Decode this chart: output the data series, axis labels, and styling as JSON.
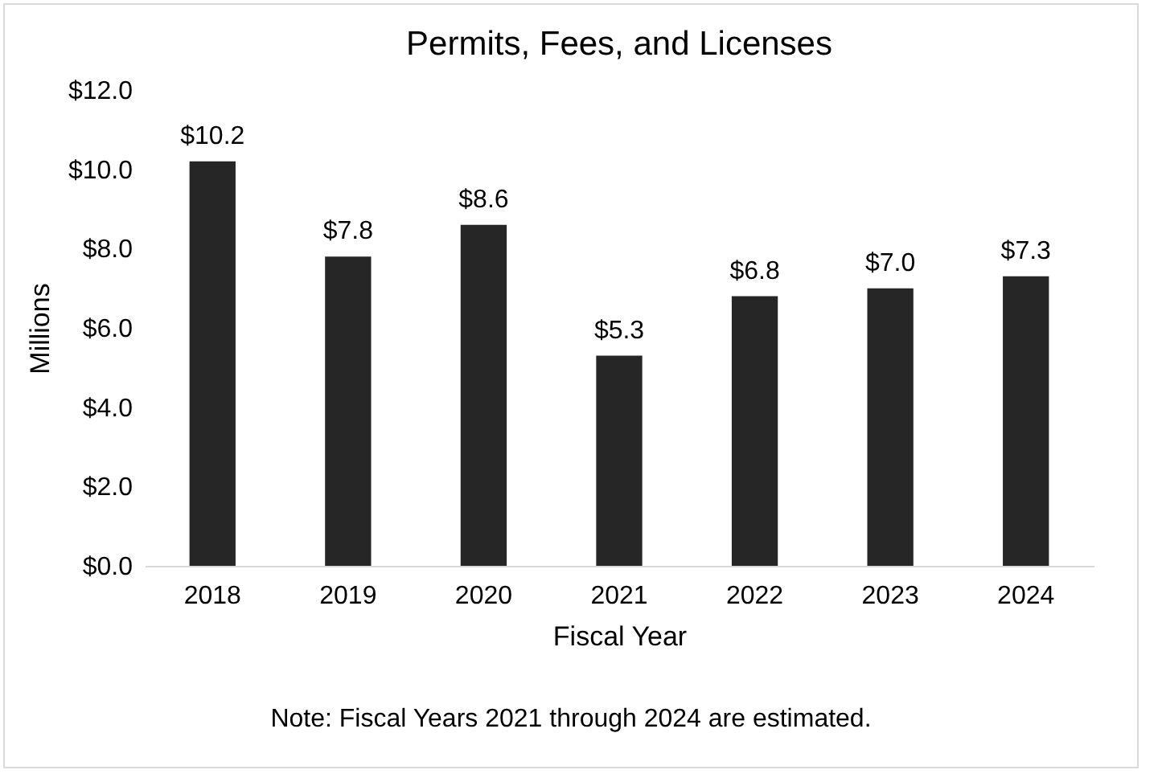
{
  "chart_data": {
    "type": "bar",
    "title": "Permits, Fees, and Licenses",
    "xlabel": "Fiscal Year",
    "ylabel": "Millions",
    "categories": [
      "2018",
      "2019",
      "2020",
      "2021",
      "2022",
      "2023",
      "2024"
    ],
    "values": [
      10.2,
      7.8,
      8.6,
      5.3,
      6.8,
      7.0,
      7.3
    ],
    "value_labels": [
      "$10.2",
      "$7.8",
      "$8.6",
      "$5.3",
      "$6.8",
      "$7.0",
      "$7.3"
    ],
    "color": "#262626",
    "ylim": [
      0,
      12
    ],
    "yticks": [
      {
        "value": 0,
        "label": "$0.0"
      },
      {
        "value": 2,
        "label": "$2.0"
      },
      {
        "value": 4,
        "label": "$4.0"
      },
      {
        "value": 6,
        "label": "$6.0"
      },
      {
        "value": 8,
        "label": "$8.0"
      },
      {
        "value": 10,
        "label": "$10.0"
      },
      {
        "value": 12,
        "label": "$12.0"
      }
    ],
    "grid": false,
    "annotations": [
      "Note: Fiscal Years 2021 through 2024 are estimated."
    ]
  }
}
